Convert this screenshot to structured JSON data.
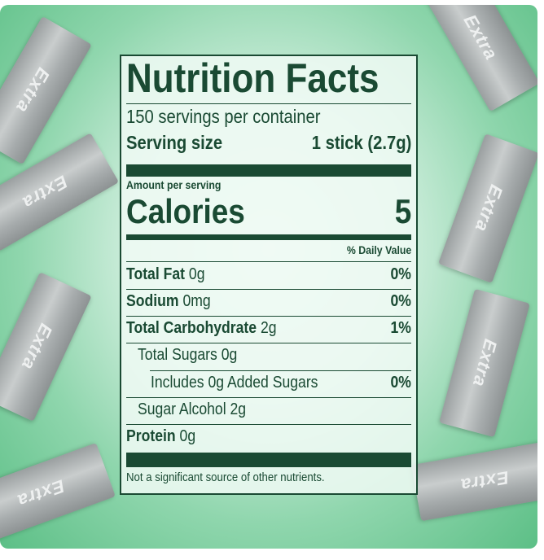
{
  "brand_text": "Extra",
  "colors": {
    "label_green": "#1a4a33",
    "background_green": "#5cbf86"
  },
  "label": {
    "title": "Nutrition Facts",
    "servings_per_container": "150 servings per container",
    "serving_size_label": "Serving size",
    "serving_size_value": "1 stick (2.7g)",
    "amount_per_serving": "Amount per serving",
    "calories_label": "Calories",
    "calories_value": "5",
    "daily_value_header": "% Daily Value",
    "nutrients": [
      {
        "name": "Total Fat",
        "amount": "0g",
        "dv": "0%"
      },
      {
        "name": "Sodium",
        "amount": "0mg",
        "dv": "0%"
      },
      {
        "name": "Total Carbohydrate",
        "amount": "2g",
        "dv": "1%"
      },
      {
        "name": "Total Sugars 0g"
      },
      {
        "name": "Includes 0g Added Sugars",
        "dv": "0%"
      },
      {
        "name": "Sugar Alcohol 2g"
      },
      {
        "name": "Protein",
        "amount": "0g"
      }
    ],
    "footnote": "Not a significant source of other nutrients."
  }
}
